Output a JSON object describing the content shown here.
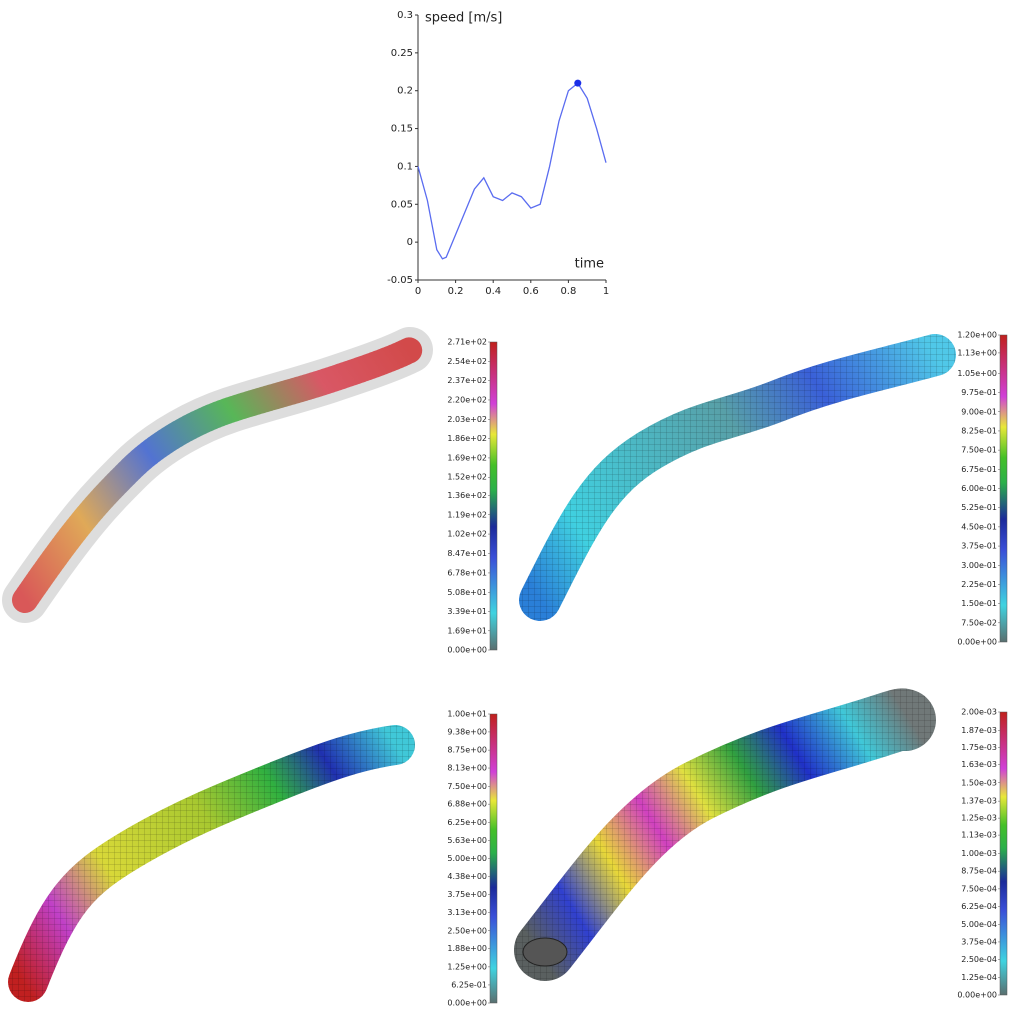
{
  "chart_data": {
    "type": "line",
    "ylabel": "speed [m/s]",
    "xlabel": "time",
    "color": "#5a6cf0",
    "x": [
      0,
      0.05,
      0.1,
      0.13,
      0.15,
      0.2,
      0.25,
      0.3,
      0.35,
      0.4,
      0.45,
      0.5,
      0.55,
      0.6,
      0.65,
      0.7,
      0.75,
      0.8,
      0.85,
      0.9,
      0.95,
      1
    ],
    "values": [
      0.1,
      0.055,
      -0.01,
      -0.022,
      -0.02,
      0.01,
      0.04,
      0.07,
      0.085,
      0.06,
      0.055,
      0.065,
      0.06,
      0.045,
      0.05,
      0.1,
      0.16,
      0.2,
      0.21,
      0.19,
      0.15,
      0.105
    ],
    "marker": {
      "x": 0.85,
      "y": 0.21,
      "color": "#1a2ee8"
    },
    "xlim": [
      0,
      1
    ],
    "ylim": [
      -0.05,
      0.3
    ],
    "xticks": [
      0,
      0.2,
      0.4,
      0.6,
      0.8,
      1
    ],
    "yticks": [
      -0.05,
      0,
      0.05,
      0.1,
      0.15,
      0.2,
      0.25,
      0.3
    ]
  },
  "colorbars": [
    {
      "lim": [
        0,
        271
      ],
      "ticks": [
        {
          "value": 0,
          "label": "0.00e+00"
        },
        {
          "value": 16.9,
          "label": "1.69e+01"
        },
        {
          "value": 33.9,
          "label": "3.39e+01"
        },
        {
          "value": 50.8,
          "label": "5.08e+01"
        },
        {
          "value": 67.8,
          "label": "6.78e+01"
        },
        {
          "value": 84.7,
          "label": "8.47e+01"
        },
        {
          "value": 102,
          "label": "1.02e+02"
        },
        {
          "value": 119,
          "label": "1.19e+02"
        },
        {
          "value": 136,
          "label": "1.36e+02"
        },
        {
          "value": 152,
          "label": "1.52e+02"
        },
        {
          "value": 169,
          "label": "1.69e+02"
        },
        {
          "value": 186,
          "label": "1.86e+02"
        },
        {
          "value": 203,
          "label": "2.03e+02"
        },
        {
          "value": 220,
          "label": "2.20e+02"
        },
        {
          "value": 237,
          "label": "2.37e+02"
        },
        {
          "value": 254,
          "label": "2.54e+02"
        },
        {
          "value": 271,
          "label": "2.71e+02"
        }
      ]
    },
    {
      "lim": [
        0,
        1.2
      ],
      "ticks": [
        {
          "value": 0,
          "label": "0.00e+00"
        },
        {
          "value": 0.075,
          "label": "7.50e-02"
        },
        {
          "value": 0.15,
          "label": "1.50e-01"
        },
        {
          "value": 0.225,
          "label": "2.25e-01"
        },
        {
          "value": 0.3,
          "label": "3.00e-01"
        },
        {
          "value": 0.375,
          "label": "3.75e-01"
        },
        {
          "value": 0.45,
          "label": "4.50e-01"
        },
        {
          "value": 0.525,
          "label": "5.25e-01"
        },
        {
          "value": 0.6,
          "label": "6.00e-01"
        },
        {
          "value": 0.675,
          "label": "6.75e-01"
        },
        {
          "value": 0.75,
          "label": "7.50e-01"
        },
        {
          "value": 0.825,
          "label": "8.25e-01"
        },
        {
          "value": 0.9,
          "label": "9.00e-01"
        },
        {
          "value": 0.975,
          "label": "9.75e-01"
        },
        {
          "value": 1.05,
          "label": "1.05e+00"
        },
        {
          "value": 1.13,
          "label": "1.13e+00"
        },
        {
          "value": 1.2,
          "label": "1.20e+00"
        }
      ]
    },
    {
      "lim": [
        0,
        10
      ],
      "ticks": [
        {
          "value": 0,
          "label": "0.00e+00"
        },
        {
          "value": 0.625,
          "label": "6.25e-01"
        },
        {
          "value": 1.25,
          "label": "1.25e+00"
        },
        {
          "value": 1.88,
          "label": "1.88e+00"
        },
        {
          "value": 2.5,
          "label": "2.50e+00"
        },
        {
          "value": 3.13,
          "label": "3.13e+00"
        },
        {
          "value": 3.75,
          "label": "3.75e+00"
        },
        {
          "value": 4.38,
          "label": "4.38e+00"
        },
        {
          "value": 5,
          "label": "5.00e+00"
        },
        {
          "value": 5.63,
          "label": "5.63e+00"
        },
        {
          "value": 6.25,
          "label": "6.25e+00"
        },
        {
          "value": 6.88,
          "label": "6.88e+00"
        },
        {
          "value": 7.5,
          "label": "7.50e+00"
        },
        {
          "value": 8.13,
          "label": "8.13e+00"
        },
        {
          "value": 8.75,
          "label": "8.75e+00"
        },
        {
          "value": 9.38,
          "label": "9.38e+00"
        },
        {
          "value": 10,
          "label": "1.00e+01"
        }
      ]
    },
    {
      "lim": [
        0,
        0.002
      ],
      "ticks": [
        {
          "value": 0,
          "label": "0.00e+00"
        },
        {
          "value": 0.000125,
          "label": "1.25e-04"
        },
        {
          "value": 0.00025,
          "label": "2.50e-04"
        },
        {
          "value": 0.000375,
          "label": "3.75e-04"
        },
        {
          "value": 0.0005,
          "label": "5.00e-04"
        },
        {
          "value": 0.000625,
          "label": "6.25e-04"
        },
        {
          "value": 0.00075,
          "label": "7.50e-04"
        },
        {
          "value": 0.000875,
          "label": "8.75e-04"
        },
        {
          "value": 0.001,
          "label": "1.00e-03"
        },
        {
          "value": 0.00113,
          "label": "1.13e-03"
        },
        {
          "value": 0.00125,
          "label": "1.25e-03"
        },
        {
          "value": 0.00137,
          "label": "1.37e-03"
        },
        {
          "value": 0.0015,
          "label": "1.50e-03"
        },
        {
          "value": 0.00163,
          "label": "1.63e-03"
        },
        {
          "value": 0.00175,
          "label": "1.75e-03"
        },
        {
          "value": 0.00187,
          "label": "1.87e-03"
        },
        {
          "value": 0.002,
          "label": "2.00e-03"
        }
      ]
    }
  ]
}
